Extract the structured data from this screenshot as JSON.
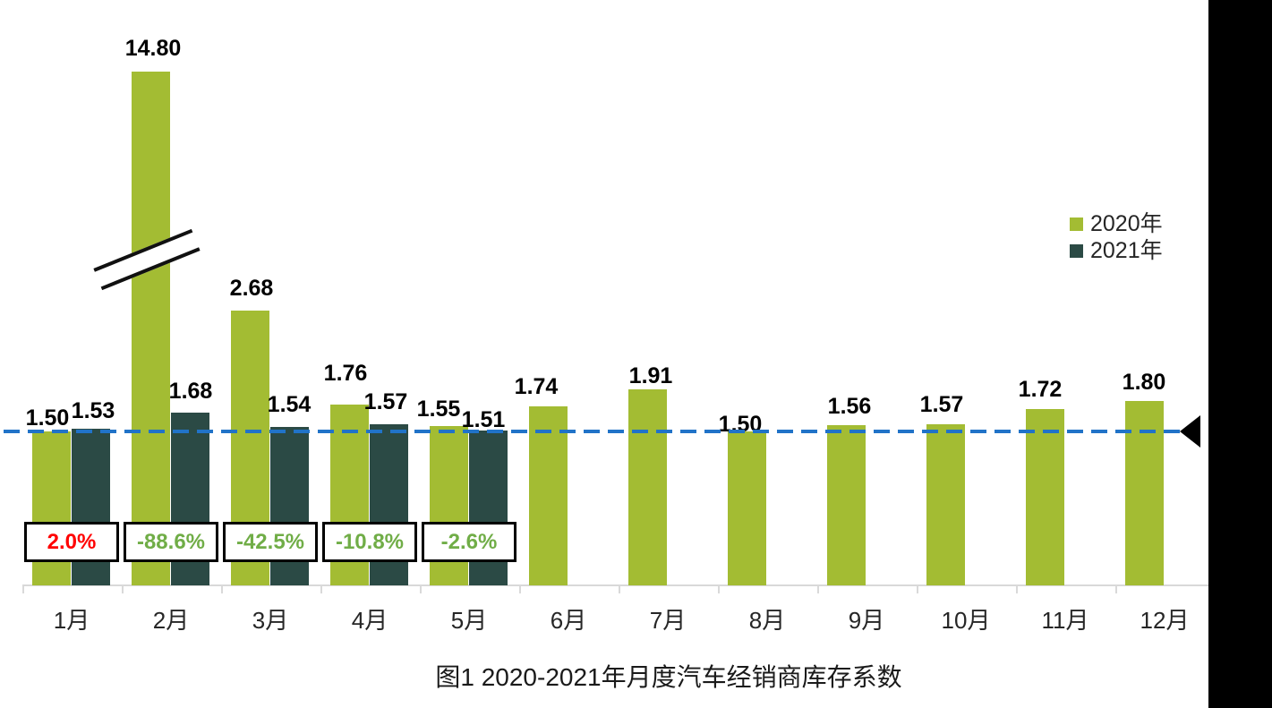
{
  "chart_data": {
    "type": "bar",
    "caption": "图1  2020-2021年月度汽车经销商库存系数",
    "title": "",
    "xlabel": "",
    "ylabel": "",
    "categories": [
      "1月",
      "2月",
      "3月",
      "4月",
      "5月",
      "6月",
      "7月",
      "8月",
      "9月",
      "10月",
      "11月",
      "12月"
    ],
    "series": [
      {
        "name": "2020年",
        "values": [
          1.5,
          14.8,
          2.68,
          1.76,
          1.55,
          1.74,
          1.91,
          1.5,
          1.56,
          1.57,
          1.72,
          1.8
        ]
      },
      {
        "name": "2021年",
        "values": [
          1.53,
          1.68,
          1.54,
          1.57,
          1.51
        ]
      }
    ],
    "yoy_change": [
      "2.0%",
      "-88.6%",
      "-42.5%",
      "-10.8%",
      "-2.6%"
    ],
    "reference_line_value": 1.5,
    "axis_break_on": "2020年 2月 (14.80)",
    "ylim_display": [
      0,
      5
    ],
    "grid": false,
    "legend_position": "right-upper",
    "colors": {
      "series_2020": "#A3BC33",
      "series_2021": "#2B4A45",
      "reference_line": "#2173C8",
      "yoy_positive_text": "#FF0000",
      "yoy_negative_text": "#70AD47",
      "axis": "#D9D9D9",
      "value_label_text": "#000000",
      "right_strip": "#000000"
    }
  }
}
